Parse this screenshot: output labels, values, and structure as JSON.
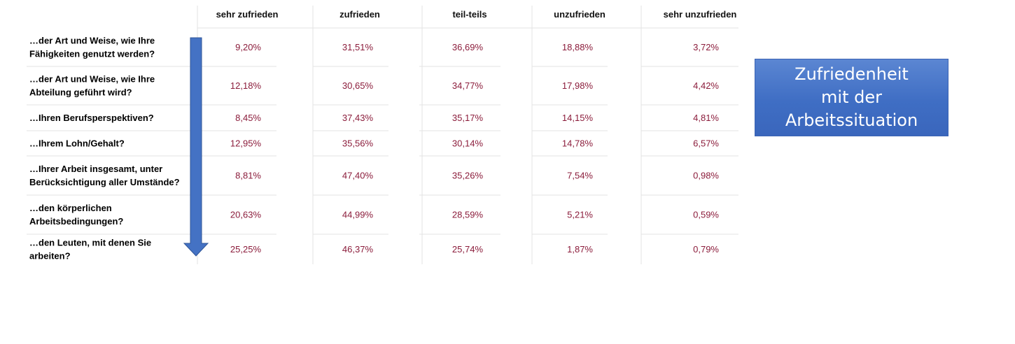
{
  "chart_data": {
    "type": "table",
    "columns": [
      "sehr zufrieden",
      "zufrieden",
      "teil-teils",
      "unzufrieden",
      "sehr unzufrieden"
    ],
    "rows": [
      {
        "label": [
          "…der Art und Weise, wie Ihre",
          "Fähigkeiten genutzt werden?"
        ],
        "values": [
          "9,20%",
          "31,51%",
          "36,69%",
          "18,88%",
          "3,72%"
        ]
      },
      {
        "label": [
          "…der Art und Weise, wie Ihre",
          "Abteilung geführt wird?"
        ],
        "values": [
          "12,18%",
          "30,65%",
          "34,77%",
          "17,98%",
          "4,42%"
        ]
      },
      {
        "label": [
          "…Ihren Berufsperspektiven?"
        ],
        "values": [
          "8,45%",
          "37,43%",
          "35,17%",
          "14,15%",
          "4,81%"
        ]
      },
      {
        "label": [
          "…Ihrem Lohn/Gehalt?"
        ],
        "values": [
          "12,95%",
          "35,56%",
          "30,14%",
          "14,78%",
          "6,57%"
        ]
      },
      {
        "label": [
          "…Ihrer Arbeit insgesamt, unter",
          "Berücksichtigung aller Umstände?"
        ],
        "values": [
          "8,81%",
          "47,40%",
          "35,26%",
          "7,54%",
          "0,98%"
        ]
      },
      {
        "label": [
          "…den körperlichen",
          "Arbeitsbedingungen?"
        ],
        "values": [
          "20,63%",
          "44,99%",
          "28,59%",
          "5,21%",
          "0,59%"
        ]
      },
      {
        "label": [
          "…den Leuten, mit denen Sie",
          "arbeiten?"
        ],
        "values": [
          "25,25%",
          "46,37%",
          "25,74%",
          "1,87%",
          "0,79%"
        ]
      }
    ],
    "colors": {
      "values": "#8b1c3b",
      "arrow": "#4472c4",
      "box": "#4472c4"
    }
  },
  "title_box": {
    "text": "Zufriedenheit\nmit der\nArbeitssituation"
  }
}
